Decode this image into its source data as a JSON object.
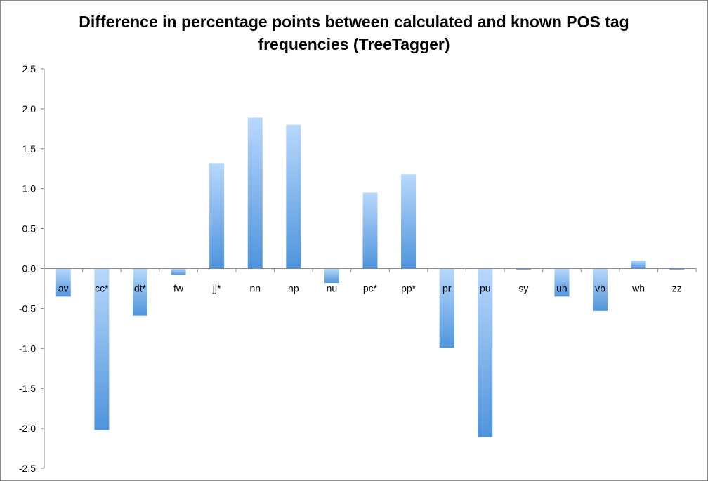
{
  "chart_data": {
    "type": "bar",
    "title_lines": [
      "Difference in percentage points between calculated and known POS tag",
      "frequencies (TreeTagger)"
    ],
    "categories": [
      "av",
      "cc*",
      "dt*",
      "fw",
      "jj*",
      "nn",
      "np",
      "nu",
      "pc*",
      "pp*",
      "pr",
      "pu",
      "sy",
      "uh",
      "vb",
      "wh",
      "zz"
    ],
    "values": [
      -0.35,
      -2.02,
      -0.59,
      -0.08,
      1.32,
      1.89,
      1.8,
      -0.18,
      0.95,
      1.18,
      -0.99,
      -2.11,
      -0.01,
      -0.35,
      -0.53,
      0.1,
      -0.01
    ],
    "ylim": [
      -2.5,
      2.5
    ],
    "yticks": [
      "2.5",
      "2.0",
      "1.5",
      "1.0",
      "0.5",
      "0.0",
      "-0.5",
      "-1.0",
      "-1.5",
      "-2.0",
      "-2.5"
    ],
    "ytick_values": [
      2.5,
      2.0,
      1.5,
      1.0,
      0.5,
      0.0,
      -0.5,
      -1.0,
      -1.5,
      -2.0,
      -2.5
    ],
    "xlabel": "",
    "ylabel": "",
    "grid": false,
    "legend": "none",
    "bar_color_light": "#b8d8fc",
    "bar_color_dark": "#4f94dc",
    "axis_color": "#888888"
  }
}
